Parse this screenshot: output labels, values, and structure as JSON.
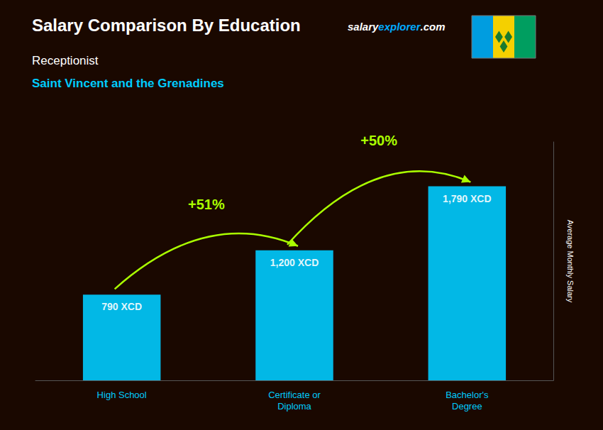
{
  "chart_data": {
    "type": "bar",
    "title": "Salary Comparison By Education",
    "subtitle": "Receptionist",
    "country": "Saint Vincent and the Grenadines",
    "ylabel": "Average Monthly Salary",
    "categories": [
      "High School",
      "Certificate or\nDiploma",
      "Bachelor's\nDegree"
    ],
    "values": [
      790,
      1200,
      1790
    ],
    "value_labels": [
      "790 XCD",
      "1,200 XCD",
      "1,790 XCD"
    ],
    "data_labels": true,
    "color": "#00ccff",
    "ylim": [
      0,
      2200
    ],
    "tick_labels": "x",
    "grid": false,
    "annotations": [
      {
        "text": "+51%",
        "from": 0,
        "to": 1,
        "color": "#aaff00"
      },
      {
        "text": "+50%",
        "from": 1,
        "to": 2,
        "color": "#aaff00"
      }
    ],
    "watermark": [
      {
        "text": "salary",
        "color": "#ffffff"
      },
      {
        "text": "explorer",
        "color": "#00aaff"
      },
      {
        "text": ".com",
        "color": "#ffffff"
      }
    ],
    "background_color": "#1a0800",
    "title_color": "#ffffff",
    "subtitle_color": "#ffffff",
    "country_color": "#00ccff",
    "xtick_color": "#00ccff",
    "ylabel_color": "#ffffff",
    "value_color": "#ffffff"
  }
}
